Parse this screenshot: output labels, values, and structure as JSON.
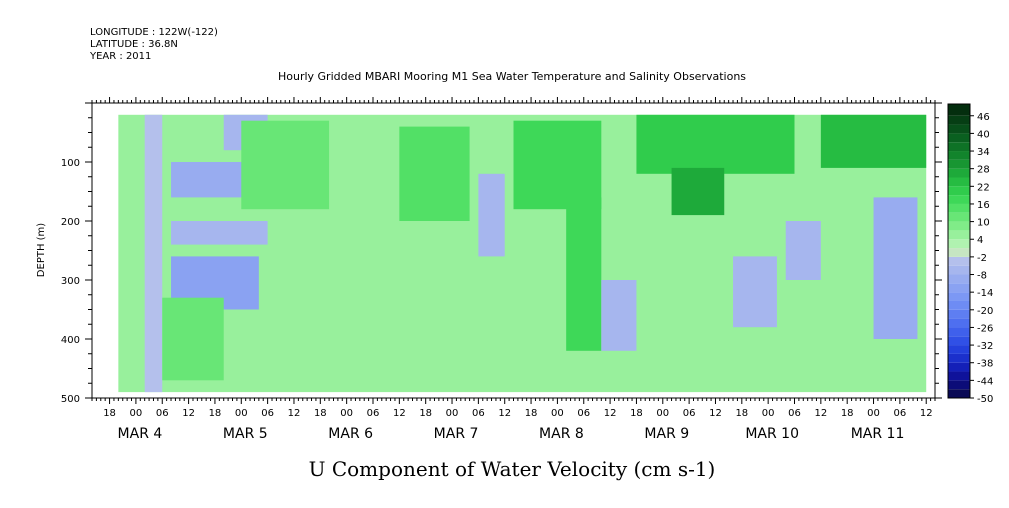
{
  "header": {
    "longitude": "LONGITUDE : 122W(-122)",
    "latitude": "LATITUDE : 36.8N",
    "year": "YEAR : 2011"
  },
  "chart_data": {
    "type": "heatmap",
    "title": "Hourly Gridded MBARI Mooring M1 Sea Water Temperature and Salinity Observations",
    "variable_title": "U Component of Water Velocity (cm s-1)",
    "ylabel": "DEPTH (m)",
    "ylim": [
      500,
      0
    ],
    "y_data_range": [
      20,
      490
    ],
    "y_ticks": [
      100,
      200,
      300,
      400,
      500
    ],
    "y_tick_labels": [
      "100",
      "200",
      "300",
      "400",
      "500"
    ],
    "time_range": [
      "2011-03-03T14:00",
      "2011-03-11T14:00"
    ],
    "data_time_range": [
      "2011-03-03T20:00",
      "2011-03-11T12:00"
    ],
    "hour_tick_labels": [
      {
        "time": "2011-03-03T18:00",
        "label": "18"
      },
      {
        "time": "2011-03-04T00:00",
        "label": "00"
      },
      {
        "time": "2011-03-04T06:00",
        "label": "06"
      },
      {
        "time": "2011-03-04T12:00",
        "label": "12"
      },
      {
        "time": "2011-03-04T18:00",
        "label": "18"
      },
      {
        "time": "2011-03-05T00:00",
        "label": "00"
      },
      {
        "time": "2011-03-05T06:00",
        "label": "06"
      },
      {
        "time": "2011-03-05T12:00",
        "label": "12"
      },
      {
        "time": "2011-03-05T18:00",
        "label": "18"
      },
      {
        "time": "2011-03-06T00:00",
        "label": "00"
      },
      {
        "time": "2011-03-06T06:00",
        "label": "06"
      },
      {
        "time": "2011-03-06T12:00",
        "label": "12"
      },
      {
        "time": "2011-03-06T18:00",
        "label": "18"
      },
      {
        "time": "2011-03-07T00:00",
        "label": "00"
      },
      {
        "time": "2011-03-07T06:00",
        "label": "06"
      },
      {
        "time": "2011-03-07T12:00",
        "label": "12"
      },
      {
        "time": "2011-03-07T18:00",
        "label": "18"
      },
      {
        "time": "2011-03-08T00:00",
        "label": "00"
      },
      {
        "time": "2011-03-08T06:00",
        "label": "06"
      },
      {
        "time": "2011-03-08T12:00",
        "label": "12"
      },
      {
        "time": "2011-03-08T18:00",
        "label": "18"
      },
      {
        "time": "2011-03-09T00:00",
        "label": "00"
      },
      {
        "time": "2011-03-09T06:00",
        "label": "06"
      },
      {
        "time": "2011-03-09T12:00",
        "label": "12"
      },
      {
        "time": "2011-03-09T18:00",
        "label": "18"
      },
      {
        "time": "2011-03-10T00:00",
        "label": "00"
      },
      {
        "time": "2011-03-10T06:00",
        "label": "06"
      },
      {
        "time": "2011-03-10T12:00",
        "label": "12"
      },
      {
        "time": "2011-03-10T18:00",
        "label": "18"
      },
      {
        "time": "2011-03-11T00:00",
        "label": "00"
      },
      {
        "time": "2011-03-11T06:00",
        "label": "06"
      },
      {
        "time": "2011-03-11T12:00",
        "label": "12"
      }
    ],
    "date_labels": [
      {
        "time": "2011-03-04T00:00",
        "label": "MAR  4"
      },
      {
        "time": "2011-03-05T00:00",
        "label": "MAR  5"
      },
      {
        "time": "2011-03-06T00:00",
        "label": "MAR  6"
      },
      {
        "time": "2011-03-07T00:00",
        "label": "MAR  7"
      },
      {
        "time": "2011-03-08T00:00",
        "label": "MAR  8"
      },
      {
        "time": "2011-03-09T00:00",
        "label": "MAR  9"
      },
      {
        "time": "2011-03-10T00:00",
        "label": "MAR 10"
      },
      {
        "time": "2011-03-11T00:00",
        "label": "MAR 11"
      }
    ],
    "colorbar": {
      "levels": [
        -50,
        -44,
        -38,
        -32,
        -26,
        -20,
        -14,
        -8,
        -2,
        4,
        10,
        16,
        22,
        28,
        34,
        40,
        46
      ],
      "level_labels": [
        "-50",
        "-44",
        "-38",
        "-32",
        "-26",
        "-20",
        "-14",
        "-8",
        "-2",
        "4",
        "10",
        "16",
        "22",
        "28",
        "34",
        "40",
        "46"
      ],
      "bands": [
        {
          "from": -50,
          "to": -47,
          "color": "#0a0a55"
        },
        {
          "from": -47,
          "to": -44,
          "color": "#0c0c78"
        },
        {
          "from": -44,
          "to": -41,
          "color": "#0f129a"
        },
        {
          "from": -41,
          "to": -38,
          "color": "#1420b8"
        },
        {
          "from": -38,
          "to": -35,
          "color": "#1b30cc"
        },
        {
          "from": -35,
          "to": -32,
          "color": "#2440dc"
        },
        {
          "from": -32,
          "to": -29,
          "color": "#3050e6"
        },
        {
          "from": -29,
          "to": -26,
          "color": "#3f60ec"
        },
        {
          "from": -26,
          "to": -23,
          "color": "#4e6ff0"
        },
        {
          "from": -23,
          "to": -20,
          "color": "#5e7ef2"
        },
        {
          "from": -20,
          "to": -17,
          "color": "#6e8cf4"
        },
        {
          "from": -17,
          "to": -14,
          "color": "#7c98f4"
        },
        {
          "from": -14,
          "to": -11,
          "color": "#8aa2f2"
        },
        {
          "from": -11,
          "to": -8,
          "color": "#98acf0"
        },
        {
          "from": -8,
          "to": -5,
          "color": "#a6b6ee"
        },
        {
          "from": -5,
          "to": -2,
          "color": "#b4c0ec"
        },
        {
          "from": -2,
          "to": 1,
          "color": "#c6e6c2"
        },
        {
          "from": 1,
          "to": 4,
          "color": "#b0f2b0"
        },
        {
          "from": 4,
          "to": 7,
          "color": "#98f09c"
        },
        {
          "from": 7,
          "to": 10,
          "color": "#80ec88"
        },
        {
          "from": 10,
          "to": 13,
          "color": "#68e676"
        },
        {
          "from": 13,
          "to": 16,
          "color": "#52e066"
        },
        {
          "from": 16,
          "to": 19,
          "color": "#3ed858"
        },
        {
          "from": 19,
          "to": 22,
          "color": "#30cc4c"
        },
        {
          "from": 22,
          "to": 25,
          "color": "#26bc42"
        },
        {
          "from": 25,
          "to": 28,
          "color": "#1eaa3a"
        },
        {
          "from": 28,
          "to": 31,
          "color": "#189632"
        },
        {
          "from": 31,
          "to": 34,
          "color": "#12842c"
        },
        {
          "from": 34,
          "to": 37,
          "color": "#0e7226"
        },
        {
          "from": 37,
          "to": 40,
          "color": "#0a6020"
        },
        {
          "from": 40,
          "to": 43,
          "color": "#084e1a"
        },
        {
          "from": 43,
          "to": 46,
          "color": "#063e14"
        },
        {
          "from": 46,
          "to": 50,
          "color": "#042e0e"
        }
      ]
    },
    "field_features": [
      {
        "t0": "2011-03-03T20:00",
        "t1": "2011-03-11T12:00",
        "d0": 20,
        "d1": 490,
        "value": 4
      },
      {
        "t0": "2011-03-04T02:00",
        "t1": "2011-03-04T06:00",
        "d0": 20,
        "d1": 490,
        "value": -4
      },
      {
        "t0": "2011-03-04T08:00",
        "t1": "2011-03-05T06:00",
        "d0": 100,
        "d1": 160,
        "value": -10
      },
      {
        "t0": "2011-03-04T08:00",
        "t1": "2011-03-05T06:00",
        "d0": 200,
        "d1": 240,
        "value": -8
      },
      {
        "t0": "2011-03-04T08:00",
        "t1": "2011-03-05T04:00",
        "d0": 260,
        "d1": 350,
        "value": -12
      },
      {
        "t0": "2011-03-04T06:00",
        "t1": "2011-03-04T20:00",
        "d0": 330,
        "d1": 470,
        "value": 10
      },
      {
        "t0": "2011-03-04T20:00",
        "t1": "2011-03-05T06:00",
        "d0": 20,
        "d1": 80,
        "value": -6
      },
      {
        "t0": "2011-03-05T00:00",
        "t1": "2011-03-05T20:00",
        "d0": 30,
        "d1": 180,
        "value": 12
      },
      {
        "t0": "2011-03-06T12:00",
        "t1": "2011-03-07T04:00",
        "d0": 40,
        "d1": 200,
        "value": 14
      },
      {
        "t0": "2011-03-07T06:00",
        "t1": "2011-03-07T12:00",
        "d0": 120,
        "d1": 260,
        "value": -6
      },
      {
        "t0": "2011-03-07T14:00",
        "t1": "2011-03-08T10:00",
        "d0": 30,
        "d1": 180,
        "value": 18
      },
      {
        "t0": "2011-03-08T02:00",
        "t1": "2011-03-08T10:00",
        "d0": 160,
        "d1": 420,
        "value": 16
      },
      {
        "t0": "2011-03-08T10:00",
        "t1": "2011-03-08T18:00",
        "d0": 300,
        "d1": 420,
        "value": -6
      },
      {
        "t0": "2011-03-08T18:00",
        "t1": "2011-03-10T06:00",
        "d0": 20,
        "d1": 120,
        "value": 20
      },
      {
        "t0": "2011-03-09T02:00",
        "t1": "2011-03-09T14:00",
        "d0": 110,
        "d1": 190,
        "value": 26
      },
      {
        "t0": "2011-03-09T16:00",
        "t1": "2011-03-10T02:00",
        "d0": 260,
        "d1": 380,
        "value": -8
      },
      {
        "t0": "2011-03-10T04:00",
        "t1": "2011-03-10T12:00",
        "d0": 200,
        "d1": 300,
        "value": -6
      },
      {
        "t0": "2011-03-10T12:00",
        "t1": "2011-03-11T12:00",
        "d0": 20,
        "d1": 110,
        "value": 24
      },
      {
        "t0": "2011-03-11T00:00",
        "t1": "2011-03-11T10:00",
        "d0": 160,
        "d1": 400,
        "value": -10
      }
    ]
  }
}
